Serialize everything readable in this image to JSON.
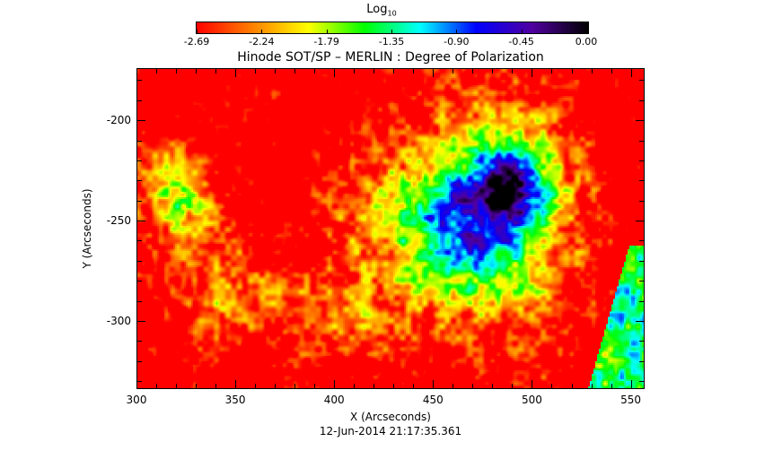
{
  "colorbar": {
    "title": "Log",
    "title_sub": "10",
    "ticks": [
      "-2.69",
      "-2.24",
      "-1.79",
      "-1.35",
      "-0.90",
      "-0.45",
      "0.00"
    ],
    "colors": [
      "#ff0000",
      "#ff8000",
      "#ffff00",
      "#00ff00",
      "#00ffff",
      "#0000ff",
      "#5000a0",
      "#000000"
    ]
  },
  "plot": {
    "title": "Hinode SOT/SP – MERLIN : Degree of Polarization",
    "xlabel": "X (Arcseconds)",
    "ylabel": "Y (Arcseconds)",
    "xlim": [
      300,
      557
    ],
    "ylim": [
      -334,
      -174
    ],
    "xticks_major": [
      300,
      350,
      400,
      450,
      500,
      550
    ],
    "xtick_labels": [
      "300",
      "350",
      "400",
      "450",
      "500",
      "550"
    ],
    "yticks_major": [
      -200,
      -250,
      -300
    ],
    "ytick_labels": [
      "-200",
      "-250",
      "-300"
    ],
    "timestamp": "12-Jun-2014 21:17:35.361",
    "image_description": "Rainbow colormap map of log10 degree of polarization, mostly red background with green/cyan/blue active region patches"
  }
}
